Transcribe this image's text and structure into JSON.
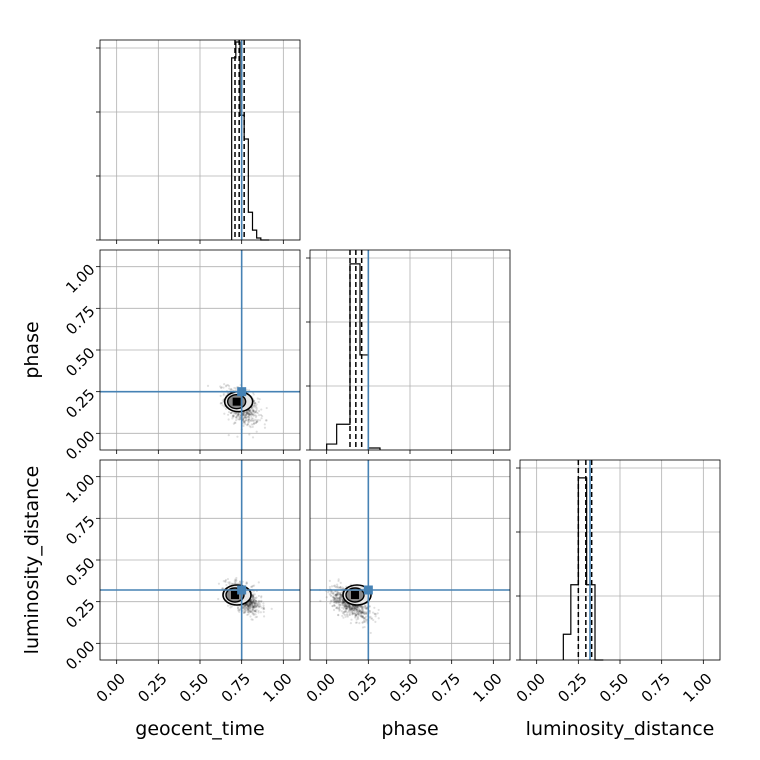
{
  "chart_data": {
    "type": "corner",
    "parameters": [
      "geocent_time",
      "phase",
      "luminosity_distance"
    ],
    "axis_labels": {
      "x": [
        "geocent_time",
        "phase",
        "luminosity_distance"
      ],
      "y": [
        "phase",
        "luminosity_distance"
      ]
    },
    "xlim": [
      -0.1,
      1.1
    ],
    "ylim": [
      -0.1,
      1.1
    ],
    "tick_values": [
      0.0,
      0.25,
      0.5,
      0.75,
      1.0
    ],
    "tick_labels": [
      "0.00",
      "0.25",
      "0.50",
      "0.75",
      "1.00"
    ],
    "grid": true,
    "truths": {
      "geocent_time": 0.75,
      "phase": 0.25,
      "luminosity_distance": 0.32
    },
    "truth_color": "#4682b4",
    "quantiles": {
      "geocent_time": [
        0.71,
        0.735,
        0.765
      ],
      "phase": [
        0.14,
        0.175,
        0.21
      ],
      "luminosity_distance": [
        0.25,
        0.295,
        0.33
      ]
    },
    "histograms": {
      "geocent_time": {
        "bin_edges": [
          0.69,
          0.715,
          0.74,
          0.765,
          0.79,
          0.815,
          0.84,
          0.865,
          0.89,
          0.915
        ],
        "heights": [
          0.92,
          1.0,
          0.63,
          0.51,
          0.14,
          0.05,
          0.01,
          0.0,
          0.0
        ]
      },
      "phase": {
        "bin_edges": [
          0.0,
          0.06,
          0.13,
          0.14,
          0.2,
          0.25,
          0.32
        ],
        "heights": [
          0.03,
          0.13,
          0.13,
          0.94,
          0.48,
          0.01
        ]
      },
      "luminosity_distance": {
        "bin_edges": [
          0.16,
          0.205,
          0.25,
          0.3,
          0.35,
          0.4
        ],
        "heights": [
          0.13,
          0.38,
          0.92,
          0.38,
          0.0
        ]
      }
    },
    "scatter": [
      {
        "x_param": "geocent_time",
        "y_param": "phase",
        "center": [
          0.75,
          0.16
        ],
        "spread": [
          0.05,
          0.05
        ],
        "contour_center": [
          0.72,
          0.19
        ]
      },
      {
        "x_param": "geocent_time",
        "y_param": "luminosity_distance",
        "center": [
          0.77,
          0.27
        ],
        "spread": [
          0.05,
          0.04
        ],
        "contour_center": [
          0.71,
          0.29
        ]
      },
      {
        "x_param": "phase",
        "y_param": "luminosity_distance",
        "center": [
          0.14,
          0.24
        ],
        "spread": [
          0.06,
          0.04
        ],
        "contour_center": [
          0.17,
          0.29
        ]
      }
    ]
  }
}
